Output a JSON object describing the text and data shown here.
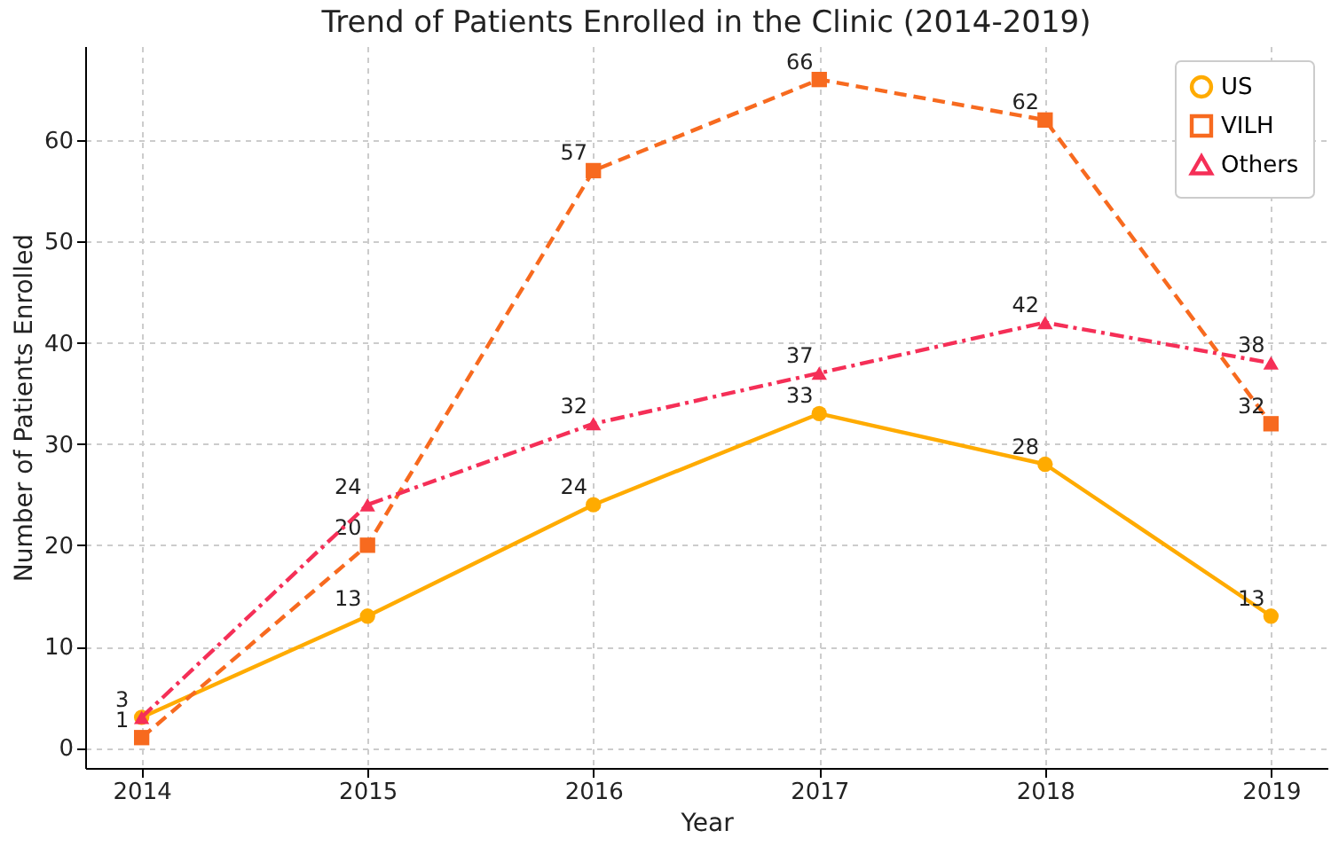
{
  "chart_data": {
    "type": "line",
    "title": "Trend of Patients Enrolled in the Clinic (2014-2019)",
    "xlabel": "Year",
    "ylabel": "Number of Patients Enrolled",
    "x": [
      2014,
      2015,
      2016,
      2017,
      2018,
      2019
    ],
    "series": [
      {
        "name": "US",
        "color": "#ffab00",
        "marker": "circle",
        "line_style": "solid",
        "values": [
          3,
          13,
          24,
          33,
          28,
          13
        ],
        "value_labels": [
          null,
          "13",
          "24",
          "33",
          "28",
          "13"
        ]
      },
      {
        "name": "VILH",
        "color": "#f76a1f",
        "marker": "square",
        "line_style": "dashed",
        "values": [
          1,
          20,
          57,
          66,
          62,
          32
        ],
        "value_labels": [
          "1",
          "20",
          "57",
          "66",
          "62",
          "32"
        ]
      },
      {
        "name": "Others",
        "color": "#f52f57",
        "marker": "triangle",
        "line_style": "dashdot",
        "values": [
          3,
          24,
          32,
          37,
          42,
          38
        ],
        "value_labels": [
          "3",
          "24",
          "32",
          "37",
          "42",
          "38"
        ]
      }
    ],
    "xlim": [
      2013.75,
      2019.25
    ],
    "xticks": [
      2014,
      2015,
      2016,
      2017,
      2018,
      2019
    ],
    "ylim": [
      -2,
      69.3
    ],
    "yticks": [
      0,
      10,
      20,
      30,
      40,
      50,
      60
    ],
    "grid": true,
    "legend": "top right"
  }
}
